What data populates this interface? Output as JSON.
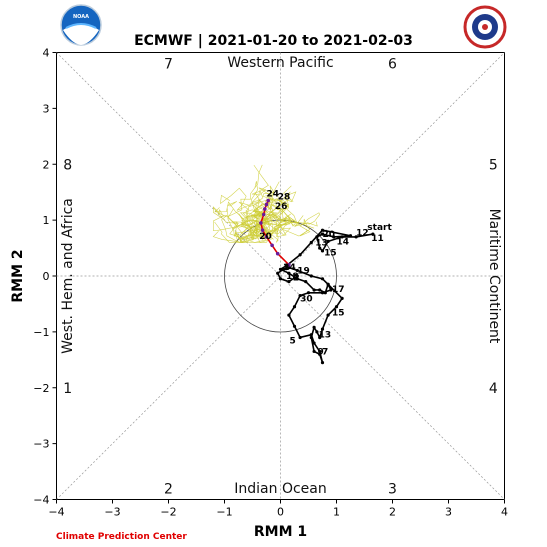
{
  "chart_data": {
    "type": "line",
    "title": "ECMWF | 2021-01-20 to 2021-02-03",
    "xlabel": "RMM 1",
    "ylabel": "RMM 2",
    "xlim": [
      -4,
      4
    ],
    "ylim": [
      -4,
      4
    ],
    "x_ticks": [
      "−4",
      "−3",
      "−2",
      "−1",
      "0",
      "1",
      "2",
      "3",
      "4"
    ],
    "y_ticks": [
      "−4",
      "−3",
      "−2",
      "−1",
      "0",
      "1",
      "2",
      "3",
      "4"
    ],
    "grid": false,
    "phases": [
      {
        "label": "1",
        "x": -3.8,
        "y": -2.0
      },
      {
        "label": "2",
        "x": -2.0,
        "y": -3.8
      },
      {
        "label": "3",
        "x": 2.0,
        "y": -3.8
      },
      {
        "label": "4",
        "x": 3.8,
        "y": -2.0
      },
      {
        "label": "5",
        "x": 3.8,
        "y": 2.0
      },
      {
        "label": "6",
        "x": 2.0,
        "y": 3.8
      },
      {
        "label": "7",
        "x": -2.0,
        "y": 3.8
      },
      {
        "label": "8",
        "x": -3.8,
        "y": 2.0
      }
    ],
    "regions": {
      "top": "Western Pacific",
      "bottom": "Indian Ocean",
      "left": "West. Hem. and Africa",
      "right": "Maritime Continent"
    },
    "series": [
      {
        "role": "observed",
        "color": "#000000",
        "x": [
          1.65,
          1.35,
          1.1,
          0.85,
          0.75,
          0.7,
          0.65,
          0.75,
          0.95,
          1.25,
          0.75,
          0.55,
          0.35,
          0.1,
          0.0,
          0.15,
          0.3,
          0.45,
          0.6,
          0.7,
          0.8,
          0.85,
          1.1,
          1.0,
          0.85,
          0.75,
          0.7,
          0.65,
          0.6,
          0.55,
          0.6,
          0.7,
          0.75,
          0.7,
          0.6,
          0.55,
          0.35,
          0.25,
          0.15,
          0.25,
          0.35,
          0.5,
          0.75,
          0.9,
          0.85,
          0.75,
          0.55,
          0.3,
          0.15,
          0.05,
          -0.05,
          0.0,
          0.15,
          0.3
        ],
        "y": [
          0.75,
          0.7,
          0.7,
          0.62,
          0.45,
          0.5,
          0.7,
          0.75,
          0.7,
          0.72,
          0.82,
          0.6,
          0.38,
          0.18,
          0.12,
          0.05,
          -0.05,
          -0.1,
          -0.25,
          -0.25,
          -0.3,
          -0.15,
          -0.4,
          -0.55,
          -0.7,
          -0.95,
          -1.1,
          -1.0,
          -0.92,
          -1.1,
          -1.35,
          -1.4,
          -1.55,
          -1.35,
          -1.2,
          -1.05,
          -1.1,
          -0.9,
          -0.7,
          -0.55,
          -0.35,
          -0.3,
          -0.3,
          -0.25,
          -0.15,
          -0.05,
          0.0,
          0.1,
          0.15,
          0.12,
          0.05,
          -0.05,
          -0.1,
          0.0
        ],
        "day_labels": [
          {
            "label": "start",
            "x": 1.55,
            "y": 0.88
          },
          {
            "label": "12",
            "x": 1.35,
            "y": 0.78
          },
          {
            "label": "11",
            "x": 1.62,
            "y": 0.68
          },
          {
            "label": "14",
            "x": 1.0,
            "y": 0.62
          },
          {
            "label": "20",
            "x": 0.75,
            "y": 0.75
          },
          {
            "label": "13",
            "x": 0.62,
            "y": 0.6
          },
          {
            "label": "15",
            "x": 0.78,
            "y": 0.42
          },
          {
            "label": "24",
            "x": 0.05,
            "y": 0.16
          },
          {
            "label": "19",
            "x": 0.3,
            "y": 0.1
          },
          {
            "label": "18",
            "x": 0.1,
            "y": 0.0
          },
          {
            "label": "2",
            "x": 0.22,
            "y": -0.03
          },
          {
            "label": "17",
            "x": 0.92,
            "y": -0.23
          },
          {
            "label": "30",
            "x": 0.35,
            "y": -0.4
          },
          {
            "label": "15",
            "x": 0.92,
            "y": -0.65
          },
          {
            "label": "13",
            "x": 0.68,
            "y": -1.05
          },
          {
            "label": "5",
            "x": 0.16,
            "y": -1.15
          },
          {
            "label": "9",
            "x": 0.66,
            "y": -1.35
          },
          {
            "label": "7",
            "x": 0.74,
            "y": -1.35
          }
        ]
      },
      {
        "role": "ensemble-mean",
        "color": "#e00000",
        "x": [
          0.15,
          -0.05,
          -0.15,
          -0.25,
          -0.32,
          -0.35,
          -0.3,
          -0.28,
          -0.25,
          -0.22
        ],
        "y": [
          0.2,
          0.4,
          0.55,
          0.7,
          0.82,
          0.95,
          1.1,
          1.2,
          1.28,
          1.35
        ],
        "day_labels": [
          {
            "label": "20",
            "x": -0.38,
            "y": 0.72
          },
          {
            "label": "24",
            "x": -0.25,
            "y": 1.48
          },
          {
            "label": "28",
            "x": -0.05,
            "y": 1.42
          },
          {
            "label": "26",
            "x": -0.1,
            "y": 1.25
          }
        ]
      }
    ],
    "ensemble_spread_color": "#cccc33"
  },
  "credit": "Climate Prediction Center",
  "logos": {
    "left": "NOAA",
    "right": "NATIONAL WEATHER SERVICE"
  }
}
